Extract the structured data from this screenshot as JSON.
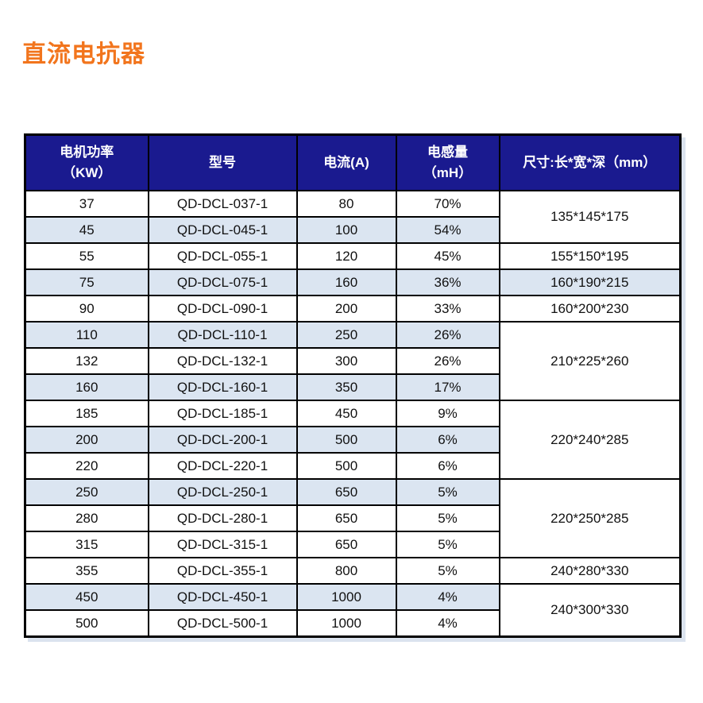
{
  "title": "直流电抗器",
  "colors": {
    "title": "#F2751D",
    "header_bg": "#1A1A8F",
    "header_text": "#FFFFFF",
    "row_shaded_bg": "#DBE5F1",
    "row_bg": "#FFFFFF",
    "border": "#000000",
    "body_text": "#111111"
  },
  "table": {
    "column_keys": [
      "power-kw",
      "model",
      "current-a",
      "inductance-mh",
      "dimensions-mm"
    ],
    "headers": [
      {
        "lines": [
          "电机功率",
          "（KW）"
        ]
      },
      {
        "lines": [
          "型号"
        ]
      },
      {
        "lines": [
          "电流(A)"
        ]
      },
      {
        "lines": [
          "电感量",
          "（mH）"
        ]
      },
      {
        "lines": [
          "尺寸:长*宽*深（mm）"
        ]
      }
    ],
    "rows": [
      {
        "power_kw": "37",
        "model": "QD-DCL-037-1",
        "current_a": "80",
        "inductance_mh": "70%",
        "shaded": false,
        "dimension": {
          "text": "135*145*175",
          "rowspan": 2,
          "shaded": false
        }
      },
      {
        "power_kw": "45",
        "model": "QD-DCL-045-1",
        "current_a": "100",
        "inductance_mh": "54%",
        "shaded": true
      },
      {
        "power_kw": "55",
        "model": "QD-DCL-055-1",
        "current_a": "120",
        "inductance_mh": "45%",
        "shaded": false,
        "dimension": {
          "text": "155*150*195",
          "rowspan": 1,
          "shaded": false
        }
      },
      {
        "power_kw": "75",
        "model": "QD-DCL-075-1",
        "current_a": "160",
        "inductance_mh": "36%",
        "shaded": true,
        "dimension": {
          "text": "160*190*215",
          "rowspan": 1,
          "shaded": true
        }
      },
      {
        "power_kw": "90",
        "model": "QD-DCL-090-1",
        "current_a": "200",
        "inductance_mh": "33%",
        "shaded": false,
        "dimension": {
          "text": "160*200*230",
          "rowspan": 1,
          "shaded": false
        }
      },
      {
        "power_kw": "110",
        "model": "QD-DCL-110-1",
        "current_a": "250",
        "inductance_mh": "26%",
        "shaded": true,
        "dimension": {
          "text": "210*225*260",
          "rowspan": 3,
          "shaded": false
        }
      },
      {
        "power_kw": "132",
        "model": "QD-DCL-132-1",
        "current_a": "300",
        "inductance_mh": "26%",
        "shaded": false
      },
      {
        "power_kw": "160",
        "model": "QD-DCL-160-1",
        "current_a": "350",
        "inductance_mh": "17%",
        "shaded": true
      },
      {
        "power_kw": "185",
        "model": "QD-DCL-185-1",
        "current_a": "450",
        "inductance_mh": "9%",
        "shaded": false,
        "dimension": {
          "text": "220*240*285",
          "rowspan": 3,
          "shaded": false
        }
      },
      {
        "power_kw": "200",
        "model": "QD-DCL-200-1",
        "current_a": "500",
        "inductance_mh": "6%",
        "shaded": true
      },
      {
        "power_kw": "220",
        "model": "QD-DCL-220-1",
        "current_a": "500",
        "inductance_mh": "6%",
        "shaded": false
      },
      {
        "power_kw": "250",
        "model": "QD-DCL-250-1",
        "current_a": "650",
        "inductance_mh": "5%",
        "shaded": true,
        "dimension": {
          "text": "220*250*285",
          "rowspan": 3,
          "shaded": false
        }
      },
      {
        "power_kw": "280",
        "model": "QD-DCL-280-1",
        "current_a": "650",
        "inductance_mh": "5%",
        "shaded": false
      },
      {
        "power_kw": "315",
        "model": "QD-DCL-315-1",
        "current_a": "650",
        "inductance_mh": "5%",
        "shaded": false
      },
      {
        "power_kw": "355",
        "model": "QD-DCL-355-1",
        "current_a": "800",
        "inductance_mh": "5%",
        "shaded": false,
        "dimension": {
          "text": "240*280*330",
          "rowspan": 1,
          "shaded": false
        }
      },
      {
        "power_kw": "450",
        "model": "QD-DCL-450-1",
        "current_a": "1000",
        "inductance_mh": "4%",
        "shaded": true,
        "dimension": {
          "text": "240*300*330",
          "rowspan": 2,
          "shaded": false
        }
      },
      {
        "power_kw": "500",
        "model": "QD-DCL-500-1",
        "current_a": "1000",
        "inductance_mh": "4%",
        "shaded": false
      }
    ]
  }
}
